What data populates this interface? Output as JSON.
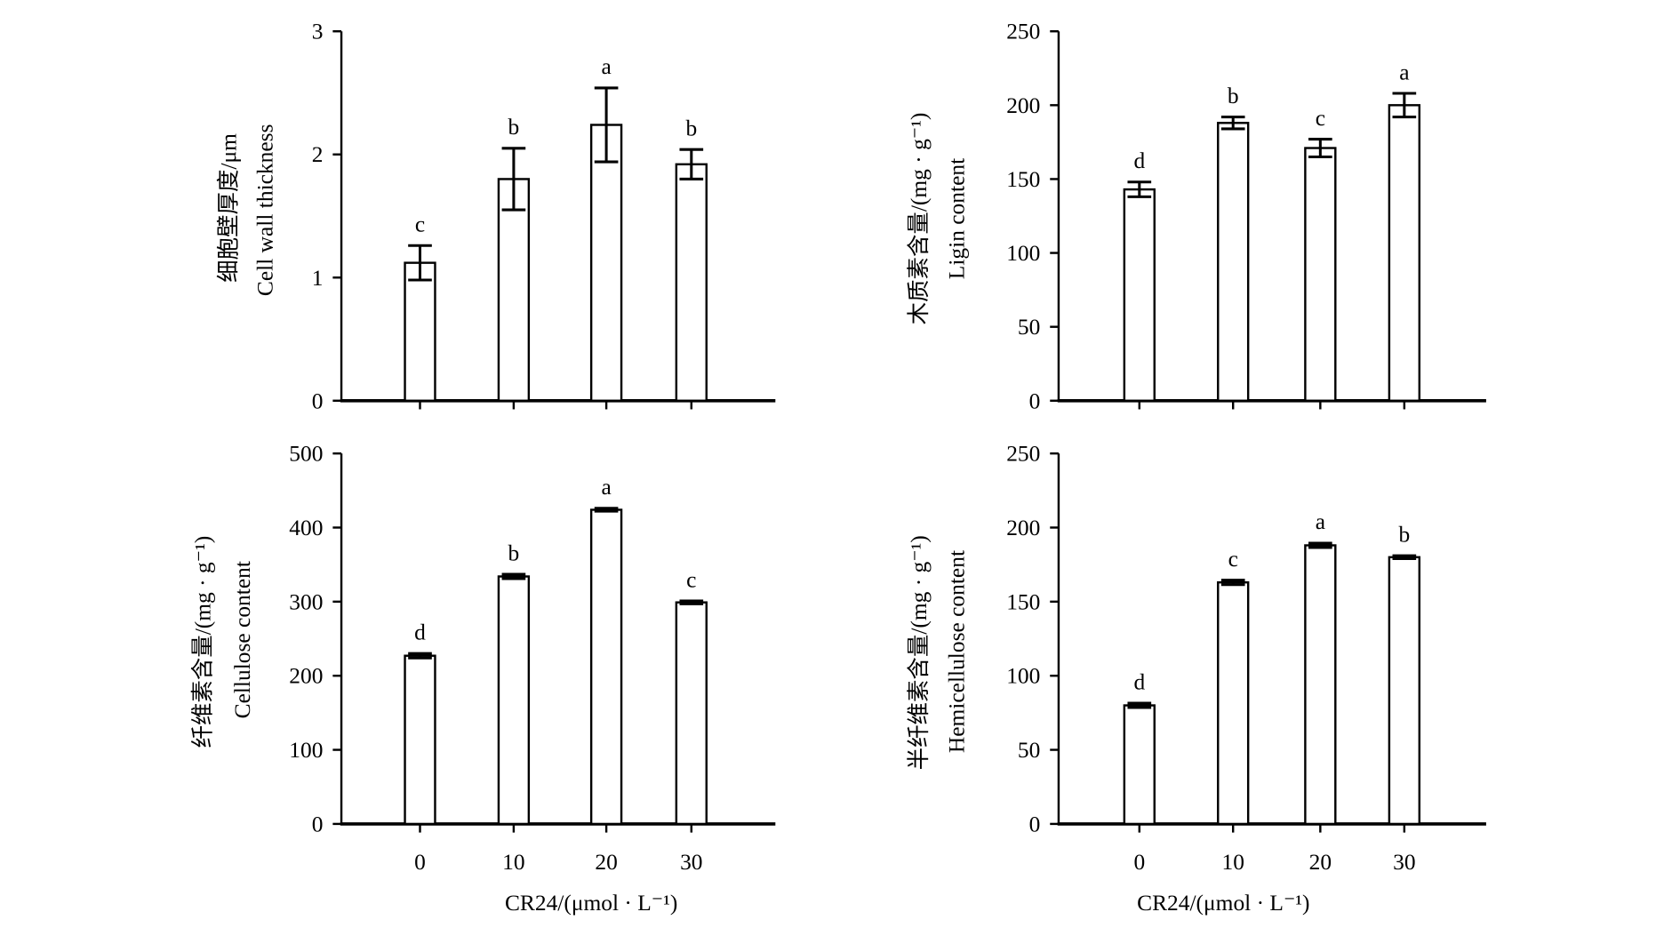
{
  "colors": {
    "background": "#ffffff",
    "bar_fill": "#ffffff",
    "ink": "#000000"
  },
  "chart_data": [
    {
      "type": "bar",
      "x": [
        0,
        10,
        20,
        30
      ],
      "x_tick_labels_shown": false,
      "values": [
        1.12,
        1.8,
        2.24,
        1.92
      ],
      "errors": [
        0.14,
        0.25,
        0.3,
        0.12
      ],
      "significance": [
        "c",
        "b",
        "a",
        "b"
      ],
      "ylabel_cn": "细胞壁厚度/μm",
      "ylabel_en": "Cell wall thickness",
      "xlabel": "",
      "ylim": [
        0,
        3
      ],
      "yticks": [
        0,
        1,
        2,
        3
      ],
      "grid": false
    },
    {
      "type": "bar",
      "x": [
        0,
        10,
        20,
        30
      ],
      "x_tick_labels_shown": false,
      "values": [
        143,
        188,
        171,
        200
      ],
      "errors": [
        5,
        4,
        6,
        8
      ],
      "significance": [
        "d",
        "b",
        "c",
        "a"
      ],
      "ylabel_cn": "木质素含量/(mg · g⁻¹)",
      "ylabel_en": "Ligin content",
      "xlabel": "",
      "ylim": [
        0,
        250
      ],
      "yticks": [
        0,
        50,
        100,
        150,
        200,
        250
      ],
      "grid": false
    },
    {
      "type": "bar",
      "x": [
        0,
        10,
        20,
        30
      ],
      "x_tick_labels_shown": true,
      "values": [
        227,
        334,
        424,
        299
      ],
      "errors": [
        3,
        3,
        2,
        2
      ],
      "significance": [
        "d",
        "b",
        "a",
        "c"
      ],
      "ylabel_cn": "纤维素含量/(mg · g⁻¹)",
      "ylabel_en": "Cellulose content",
      "xlabel": "CR24/(μmol · L⁻¹)",
      "ylim": [
        0,
        500
      ],
      "yticks": [
        0,
        100,
        200,
        300,
        400,
        500
      ],
      "grid": false
    },
    {
      "type": "bar",
      "x": [
        0,
        10,
        20,
        30
      ],
      "x_tick_labels_shown": true,
      "values": [
        80,
        163,
        188,
        180
      ],
      "errors": [
        1.5,
        1.5,
        1.5,
        1
      ],
      "significance": [
        "d",
        "c",
        "a",
        "b"
      ],
      "ylabel_cn": "半纤维素含量/(mg · g⁻¹)",
      "ylabel_en": "Hemicellulose content",
      "xlabel": "CR24/(μmol · L⁻¹)",
      "ylim": [
        0,
        250
      ],
      "yticks": [
        0,
        50,
        100,
        150,
        200,
        250
      ],
      "grid": false
    }
  ]
}
